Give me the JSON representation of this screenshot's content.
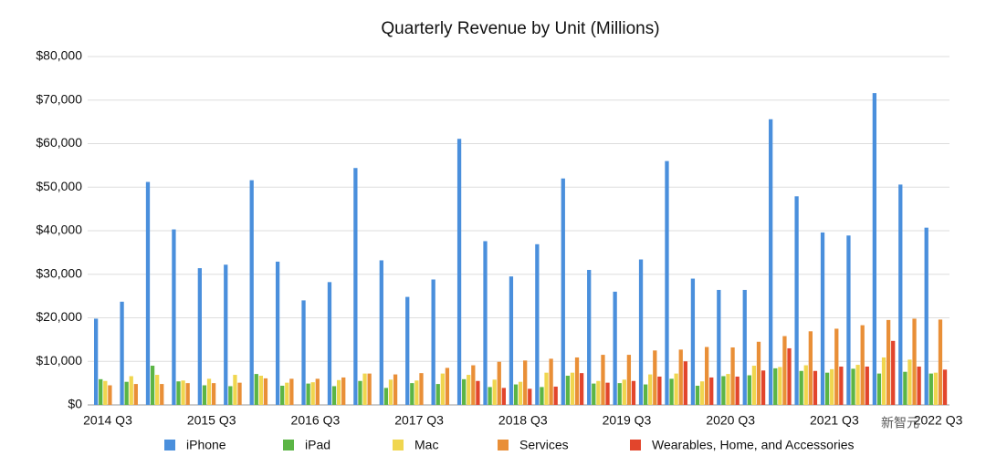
{
  "chart_data": {
    "type": "bar",
    "title": "Quarterly Revenue by Unit (Millions)",
    "categories": [
      "2014 Q3",
      null,
      null,
      null,
      "2015 Q3",
      null,
      null,
      null,
      "2016 Q3",
      null,
      null,
      null,
      "2017 Q3",
      null,
      null,
      null,
      "2018 Q3",
      null,
      null,
      null,
      "2019 Q3",
      null,
      null,
      null,
      "2020 Q3",
      null,
      null,
      null,
      "2021 Q3",
      null,
      null,
      null,
      "2022 Q3"
    ],
    "series": [
      {
        "name": "iPhone",
        "color": "#4a8fdc",
        "values": [
          19800,
          23700,
          51200,
          40300,
          31400,
          32200,
          51600,
          32900,
          24000,
          28200,
          54400,
          33200,
          24800,
          28800,
          61100,
          37600,
          29500,
          36900,
          52000,
          31000,
          26000,
          33400,
          56000,
          29000,
          26400,
          26400,
          65600,
          47900,
          39600,
          38900,
          71600,
          50600,
          40700
        ]
      },
      {
        "name": "iPad",
        "color": "#5bb545",
        "values": [
          5900,
          5300,
          9000,
          5400,
          4500,
          4300,
          7100,
          4400,
          4900,
          4300,
          5500,
          3900,
          5000,
          4800,
          5900,
          4100,
          4700,
          4100,
          6700,
          4900,
          5000,
          4700,
          6000,
          4400,
          6600,
          6800,
          8400,
          7800,
          7400,
          8300,
          7200,
          7600,
          7200
        ]
      },
      {
        "name": "Mac",
        "color": "#f0d64f",
        "values": [
          5500,
          6600,
          6900,
          5600,
          6000,
          6900,
          6700,
          5100,
          5200,
          5700,
          7200,
          5800,
          5600,
          7200,
          6900,
          5800,
          5300,
          7400,
          7400,
          5500,
          5800,
          7000,
          7200,
          5400,
          7100,
          9000,
          8700,
          9100,
          8200,
          9200,
          10900,
          10400,
          7400
        ]
      },
      {
        "name": "Services",
        "color": "#e98f37",
        "values": [
          4500,
          4800,
          4800,
          5000,
          5000,
          5100,
          6100,
          6000,
          6000,
          6300,
          7200,
          7000,
          7300,
          8500,
          9100,
          9900,
          10200,
          10600,
          10900,
          11500,
          11500,
          12500,
          12700,
          13300,
          13200,
          14500,
          15800,
          16900,
          17500,
          18300,
          19500,
          19800,
          19600
        ]
      },
      {
        "name": "Wearables, Home, and Accessories",
        "color": "#e2452c",
        "values": [
          null,
          null,
          null,
          null,
          null,
          null,
          null,
          null,
          null,
          null,
          null,
          null,
          null,
          null,
          5500,
          3900,
          3700,
          4200,
          7300,
          5100,
          5500,
          6500,
          10000,
          6300,
          6500,
          7900,
          13000,
          7800,
          8800,
          8800,
          14700,
          8800,
          8100
        ]
      }
    ],
    "ylim": [
      0,
      80000
    ],
    "yticks": [
      {
        "value": 0,
        "label": "$0"
      },
      {
        "value": 10000,
        "label": "$10,000"
      },
      {
        "value": 20000,
        "label": "$20,000"
      },
      {
        "value": 30000,
        "label": "$30,000"
      },
      {
        "value": 40000,
        "label": "$40,000"
      },
      {
        "value": 50000,
        "label": "$50,000"
      },
      {
        "value": 60000,
        "label": "$60,000"
      },
      {
        "value": 70000,
        "label": "$70,000"
      },
      {
        "value": 80000,
        "label": "$80,000"
      }
    ],
    "grid": true,
    "legend": "bottom",
    "watermark": "新智元"
  }
}
